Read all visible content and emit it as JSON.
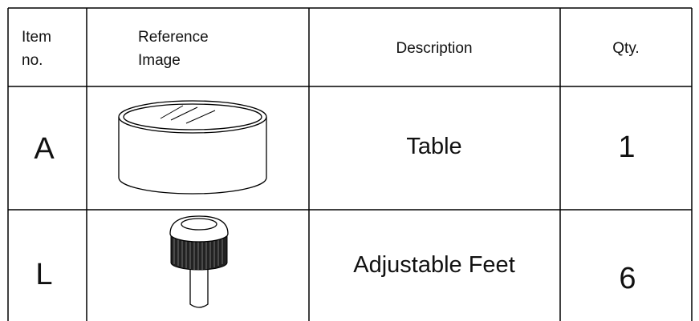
{
  "table": {
    "header": [
      [
        "Item",
        "no."
      ],
      [
        "Reference",
        "Image"
      ],
      [
        "Description"
      ],
      [
        "Qty."
      ]
    ],
    "rows": [
      {
        "item": "A",
        "description": "Table",
        "qty": 1
      },
      {
        "item": "L",
        "description": "Adjustable Feet",
        "qty": 6
      }
    ]
  }
}
